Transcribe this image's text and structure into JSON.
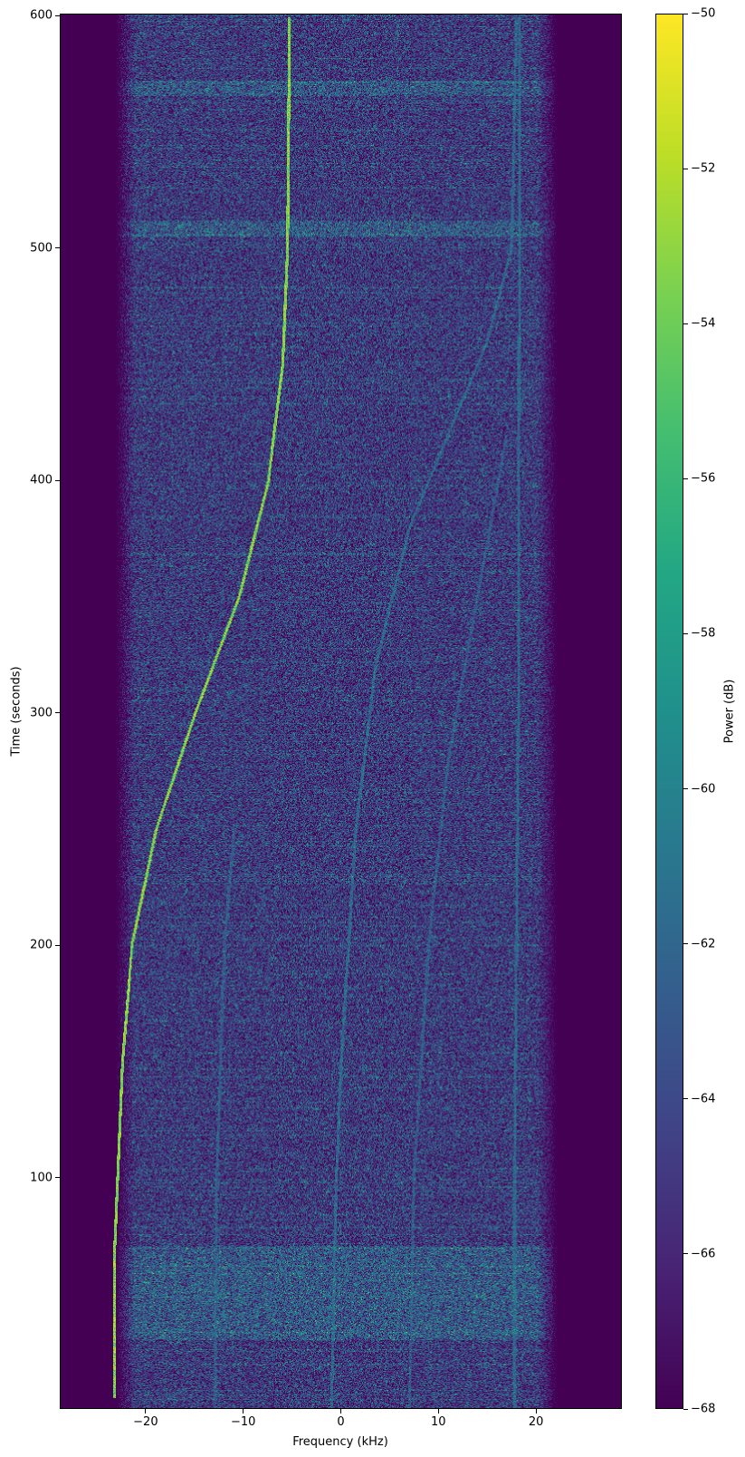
{
  "chart_data": {
    "type": "heatmap",
    "xlabel": "Frequency (kHz)",
    "ylabel": "Time (seconds)",
    "xlim": [
      -28.8,
      28.8
    ],
    "ylim": [
      0.5,
      600.8
    ],
    "xticks": [
      -20,
      -10,
      0,
      10,
      20
    ],
    "xtick_labels": [
      "−20",
      "−10",
      "0",
      "10",
      "20"
    ],
    "yticks": [
      100,
      200,
      300,
      400,
      500,
      600
    ],
    "ytick_labels": [
      "100",
      "200",
      "300",
      "400",
      "500",
      "600"
    ],
    "colormap": "viridis",
    "colorbar": {
      "label": "Power (dB)",
      "range": [
        -68,
        -50
      ],
      "ticks": [
        -50,
        -52,
        -54,
        -56,
        -58,
        -60,
        -62,
        -64,
        -66,
        -68
      ],
      "tick_labels": [
        "−50",
        "−52",
        "−54",
        "−56",
        "−58",
        "−60",
        "−62",
        "−64",
        "−66",
        "−68"
      ]
    },
    "noise_band_khz": [
      -23.5,
      22.5
    ],
    "noise_floor_db": -66,
    "traces": [
      {
        "level_db": -51,
        "points": [
          [
            -23.3,
            5
          ],
          [
            -23.3,
            70
          ],
          [
            -23,
            100
          ],
          [
            -22.5,
            150
          ],
          [
            -21.5,
            200
          ],
          [
            -19,
            250
          ],
          [
            -15,
            300
          ],
          [
            -10.5,
            350
          ],
          [
            -7.5,
            400
          ],
          [
            -6,
            450
          ],
          [
            -5.5,
            500
          ],
          [
            -5.3,
            600
          ]
        ]
      },
      {
        "level_db": -60,
        "points": [
          [
            -1,
            0
          ],
          [
            -0.5,
            100
          ],
          [
            0,
            150
          ],
          [
            1.5,
            250
          ],
          [
            3.5,
            320
          ],
          [
            7,
            380
          ],
          [
            11,
            420
          ],
          [
            15,
            460
          ],
          [
            17.5,
            500
          ],
          [
            18,
            600
          ]
        ]
      },
      {
        "level_db": -60,
        "points": [
          [
            17.8,
            0
          ],
          [
            17.8,
            100
          ],
          [
            18,
            200
          ],
          [
            18.2,
            300
          ],
          [
            18.3,
            500
          ],
          [
            18.3,
            600
          ]
        ]
      },
      {
        "level_db": -61,
        "points": [
          [
            -13,
            0
          ],
          [
            -12.8,
            100
          ],
          [
            -12,
            200
          ],
          [
            -11,
            250
          ]
        ]
      },
      {
        "level_db": -61,
        "points": [
          [
            7,
            0
          ],
          [
            7.5,
            100
          ],
          [
            9,
            200
          ],
          [
            11,
            280
          ],
          [
            14,
            350
          ],
          [
            17,
            420
          ]
        ]
      }
    ],
    "bright_bands_seconds": [
      [
        30,
        70
      ],
      [
        566,
        572
      ],
      [
        505,
        512
      ]
    ]
  }
}
